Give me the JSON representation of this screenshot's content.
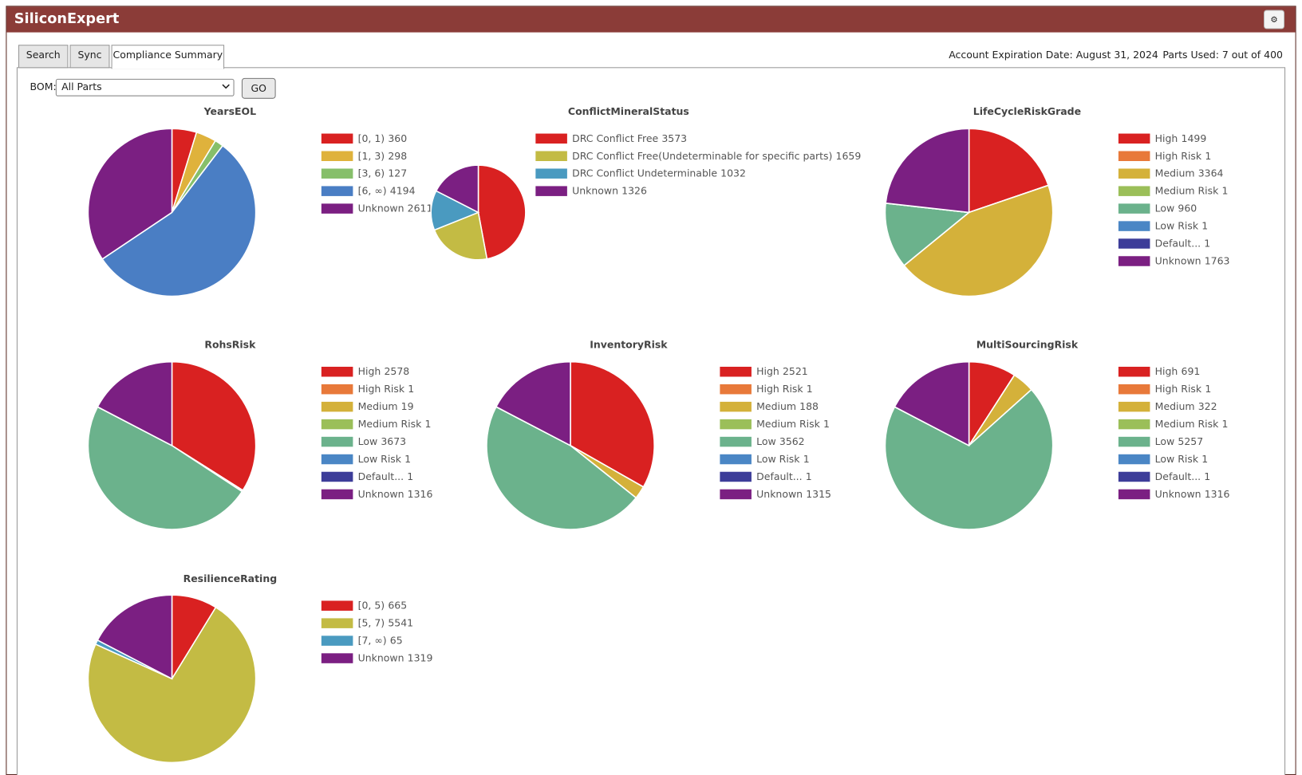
{
  "header": {
    "title": "SiliconExpert",
    "settings_icon": "⚙"
  },
  "tabs": [
    "Search",
    "Sync",
    "Compliance Summary"
  ],
  "account": {
    "expiration": "Account Expiration Date: August 31, 2024",
    "parts_used": "Parts Used: 7 out of 400"
  },
  "bom": {
    "label": "BOM:",
    "selected": "All Parts",
    "button": "GO"
  },
  "chart_data": [
    {
      "type": "pie",
      "title": "YearsEOL",
      "categories": [
        "[0, 1)",
        "[1, 3)",
        "[3, 6)",
        "[6, ∞)",
        "Unknown"
      ],
      "values": [
        360,
        298,
        127,
        4194,
        2611
      ],
      "colors": [
        "#d92121",
        "#dfb23c",
        "#86bf6a",
        "#4a7ec4",
        "#7b1f82"
      ]
    },
    {
      "type": "pie",
      "title": "ConflictMineralStatus",
      "categories": [
        "DRC Conflict Free",
        "DRC Conflict Free(Undeterminable for specific parts)",
        "DRC Conflict Undeterminable",
        "Unknown"
      ],
      "values": [
        3573,
        1659,
        1032,
        1326
      ],
      "colors": [
        "#d92121",
        "#c3bb44",
        "#4a9ac0",
        "#7b1f82"
      ]
    },
    {
      "type": "pie",
      "title": "LifeCycleRiskGrade",
      "categories": [
        "High",
        "High Risk",
        "Medium",
        "Medium Risk",
        "Low",
        "Low Risk",
        "Default...",
        "Unknown"
      ],
      "values": [
        1499,
        1,
        3364,
        1,
        960,
        1,
        1,
        1763
      ],
      "colors": [
        "#d92121",
        "#e8793a",
        "#d4b13a",
        "#9bbf59",
        "#6bb28c",
        "#4a86c5",
        "#3d3d99",
        "#7b1f82"
      ]
    },
    {
      "type": "pie",
      "title": "RohsRisk",
      "categories": [
        "High",
        "High Risk",
        "Medium",
        "Medium Risk",
        "Low",
        "Low Risk",
        "Default...",
        "Unknown"
      ],
      "values": [
        2578,
        1,
        19,
        1,
        3673,
        1,
        1,
        1316
      ],
      "colors": [
        "#d92121",
        "#e8793a",
        "#d4b13a",
        "#9bbf59",
        "#6bb28c",
        "#4a86c5",
        "#3d3d99",
        "#7b1f82"
      ]
    },
    {
      "type": "pie",
      "title": "InventoryRisk",
      "categories": [
        "High",
        "High Risk",
        "Medium",
        "Medium Risk",
        "Low",
        "Low Risk",
        "Default...",
        "Unknown"
      ],
      "values": [
        2521,
        1,
        188,
        1,
        3562,
        1,
        1,
        1315
      ],
      "colors": [
        "#d92121",
        "#e8793a",
        "#d4b13a",
        "#9bbf59",
        "#6bb28c",
        "#4a86c5",
        "#3d3d99",
        "#7b1f82"
      ]
    },
    {
      "type": "pie",
      "title": "MultiSourcingRisk",
      "categories": [
        "High",
        "High Risk",
        "Medium",
        "Medium Risk",
        "Low",
        "Low Risk",
        "Default...",
        "Unknown"
      ],
      "values": [
        691,
        1,
        322,
        1,
        5257,
        1,
        1,
        1316
      ],
      "colors": [
        "#d92121",
        "#e8793a",
        "#d4b13a",
        "#9bbf59",
        "#6bb28c",
        "#4a86c5",
        "#3d3d99",
        "#7b1f82"
      ]
    },
    {
      "type": "pie",
      "title": "ResilienceRating",
      "categories": [
        "[0, 5)",
        "[5, 7)",
        "[7, ∞)",
        "Unknown"
      ],
      "values": [
        665,
        5541,
        65,
        1319
      ],
      "colors": [
        "#d92121",
        "#c3bb44",
        "#4a9ac0",
        "#7b1f82"
      ]
    }
  ]
}
